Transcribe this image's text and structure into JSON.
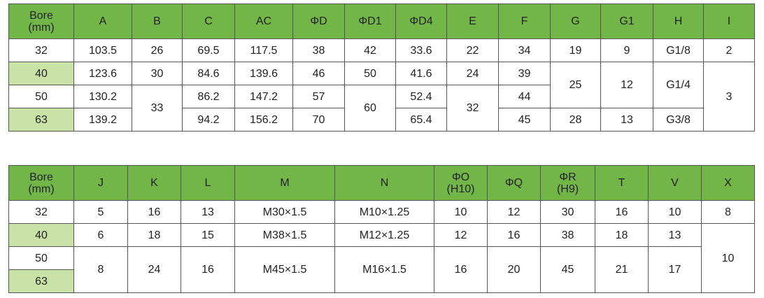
{
  "tables": [
    {
      "header": [
        "Bore\n(mm)",
        "A",
        "B",
        "C",
        "AC",
        "ΦD",
        "ΦD1",
        "ΦD4",
        "E",
        "F",
        "G",
        "G1",
        "H",
        "I"
      ],
      "rows": [
        [
          "32",
          "103.5",
          "26",
          "69.5",
          "117.5",
          "38",
          "42",
          "33.6",
          "22",
          "34",
          "19",
          "9",
          "G1/8",
          "2"
        ],
        [
          "40",
          "123.6",
          "30",
          "84.6",
          "139.6",
          "46",
          "50",
          "41.6",
          "24",
          "39",
          "25",
          "12",
          "G1/4",
          "3"
        ],
        [
          "50",
          "130.2",
          "33",
          "86.2",
          "147.2",
          "57",
          "60",
          "52.4",
          "32",
          "44"
        ],
        [
          "63",
          "139.2",
          "94.2",
          "156.2",
          "70",
          "65.4",
          "45",
          "28",
          "13",
          "G3/8"
        ]
      ]
    },
    {
      "header": [
        "Bore\n(mm)",
        "J",
        "K",
        "L",
        "M",
        "N",
        "ΦO\n(H10)",
        "ΦQ",
        "ΦR\n(H9)",
        "T",
        "V",
        "X"
      ],
      "rows": [
        [
          "32",
          "5",
          "16",
          "13",
          "M30×1.5",
          "M10×1.25",
          "10",
          "12",
          "30",
          "16",
          "10",
          "8"
        ],
        [
          "40",
          "6",
          "18",
          "15",
          "M38×1.5",
          "M12×1.25",
          "12",
          "16",
          "38",
          "18",
          "13",
          "10"
        ],
        [
          "50",
          "8",
          "24",
          "16",
          "M45×1.5",
          "M16×1.5",
          "16",
          "20",
          "45",
          "21",
          "17"
        ],
        [
          "63"
        ]
      ]
    }
  ]
}
